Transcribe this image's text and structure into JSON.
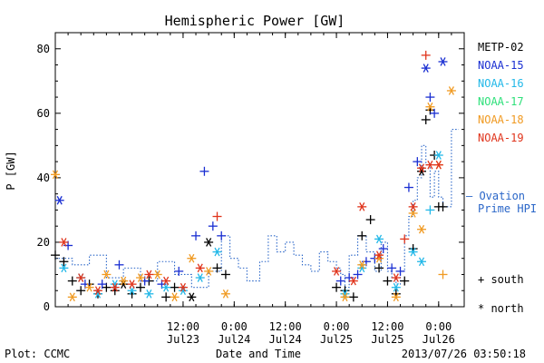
{
  "chart_data": {
    "type": "scatter",
    "title": "Hemispheric Power [GW]",
    "xlabel": "Date and Time",
    "ylabel": "P [GW]",
    "ylim": [
      0,
      85
    ],
    "xlim": [
      "2013-07-22 06:00",
      "2013-07-26 06:00"
    ],
    "yticks": [
      "0",
      "20",
      "40",
      "60",
      "80"
    ],
    "xticks": [
      {
        "time": "2013-07-23 12:00",
        "top": "12:00",
        "bottom": "Jul23"
      },
      {
        "time": "2013-07-24 00:00",
        "top": "0:00",
        "bottom": "Jul24"
      },
      {
        "time": "2013-07-24 12:00",
        "top": "12:00",
        "bottom": "Jul24"
      },
      {
        "time": "2013-07-25 00:00",
        "top": "0:00",
        "bottom": "Jul25"
      },
      {
        "time": "2013-07-25 12:00",
        "top": "12:00",
        "bottom": "Jul25"
      },
      {
        "time": "2013-07-26 00:00",
        "top": "0:00",
        "bottom": "Jul26"
      }
    ],
    "legend": {
      "placement": "right",
      "entries": [
        {
          "name": "METP-02",
          "color": "#000000"
        },
        {
          "name": "NOAA-15",
          "color": "#1a2fd2"
        },
        {
          "name": "NOAA-16",
          "color": "#22b8e8"
        },
        {
          "name": "NOAA-17",
          "color": "#2ee07a"
        },
        {
          "name": "NOAA-18",
          "color": "#f09a22"
        },
        {
          "name": "NOAA-19",
          "color": "#e0341c"
        }
      ],
      "ovation": "— Ovation Prime HPI",
      "ovation_color": "#2a66c8",
      "marker_south": "+ south",
      "marker_north": "* north"
    },
    "ovation_series": {
      "name": "Ovation Prime HPI",
      "style": "dotted-step",
      "color": "#2a66c8",
      "points": [
        [
          "2013-07-22 06:00",
          15
        ],
        [
          "2013-07-22 10:00",
          13
        ],
        [
          "2013-07-22 14:00",
          16
        ],
        [
          "2013-07-22 18:00",
          9
        ],
        [
          "2013-07-22 22:00",
          12
        ],
        [
          "2013-07-23 02:00",
          8
        ],
        [
          "2013-07-23 06:00",
          14
        ],
        [
          "2013-07-23 10:00",
          10
        ],
        [
          "2013-07-23 14:00",
          6
        ],
        [
          "2013-07-23 18:00",
          11
        ],
        [
          "2013-07-23 21:00",
          22
        ],
        [
          "2013-07-23 23:00",
          15
        ],
        [
          "2013-07-24 01:00",
          12
        ],
        [
          "2013-07-24 03:00",
          8
        ],
        [
          "2013-07-24 06:00",
          14
        ],
        [
          "2013-07-24 08:00",
          22
        ],
        [
          "2013-07-24 10:00",
          17
        ],
        [
          "2013-07-24 12:00",
          20
        ],
        [
          "2013-07-24 14:00",
          16
        ],
        [
          "2013-07-24 16:00",
          13
        ],
        [
          "2013-07-24 18:00",
          11
        ],
        [
          "2013-07-24 20:00",
          17
        ],
        [
          "2013-07-24 22:00",
          14
        ],
        [
          "2013-07-25 00:00",
          12
        ],
        [
          "2013-07-25 01:00",
          10
        ],
        [
          "2013-07-25 02:00",
          6
        ],
        [
          "2013-07-25 03:00",
          16
        ],
        [
          "2013-07-25 05:00",
          22
        ],
        [
          "2013-07-25 07:00",
          17
        ],
        [
          "2013-07-25 09:00",
          11
        ],
        [
          "2013-07-25 10:30",
          20
        ],
        [
          "2013-07-25 12:00",
          11
        ],
        [
          "2013-07-25 13:00",
          9
        ],
        [
          "2013-07-25 14:00",
          7
        ],
        [
          "2013-07-25 15:00",
          11
        ],
        [
          "2013-07-25 16:00",
          22
        ],
        [
          "2013-07-25 17:00",
          28
        ],
        [
          "2013-07-25 18:00",
          33
        ],
        [
          "2013-07-25 19:00",
          40
        ],
        [
          "2013-07-25 20:00",
          50
        ],
        [
          "2013-07-25 21:00",
          44
        ],
        [
          "2013-07-25 22:00",
          34
        ],
        [
          "2013-07-25 23:00",
          42
        ],
        [
          "2013-07-26 00:00",
          34
        ],
        [
          "2013-07-26 01:00",
          31
        ],
        [
          "2013-07-26 03:00",
          55
        ]
      ]
    },
    "series": [
      {
        "name": "METP-02",
        "color": "#000000",
        "points": [
          [
            "2013-07-22 06:00",
            16,
            "s"
          ],
          [
            "2013-07-22 08:00",
            14,
            "s"
          ],
          [
            "2013-07-22 10:00",
            8,
            "s"
          ],
          [
            "2013-07-22 12:00",
            5,
            "s"
          ],
          [
            "2013-07-22 14:00",
            7,
            "s"
          ],
          [
            "2013-07-22 16:00",
            4,
            "s"
          ],
          [
            "2013-07-22 18:00",
            6,
            "s"
          ],
          [
            "2013-07-22 20:00",
            5,
            "s"
          ],
          [
            "2013-07-22 22:00",
            7,
            "n"
          ],
          [
            "2013-07-23 00:00",
            4,
            "s"
          ],
          [
            "2013-07-23 02:00",
            6,
            "s"
          ],
          [
            "2013-07-23 04:00",
            8,
            "s"
          ],
          [
            "2013-07-23 08:00",
            3,
            "s"
          ],
          [
            "2013-07-23 10:00",
            6,
            "s"
          ],
          [
            "2013-07-23 14:00",
            3,
            "n"
          ],
          [
            "2013-07-23 18:00",
            20,
            "n"
          ],
          [
            "2013-07-23 20:00",
            12,
            "s"
          ],
          [
            "2013-07-23 22:00",
            10,
            "s"
          ],
          [
            "2013-07-25 00:00",
            6,
            "s"
          ],
          [
            "2013-07-25 02:00",
            5,
            "s"
          ],
          [
            "2013-07-25 04:00",
            3,
            "s"
          ],
          [
            "2013-07-25 06:00",
            22,
            "s"
          ],
          [
            "2013-07-25 08:00",
            27,
            "s"
          ],
          [
            "2013-07-25 10:00",
            12,
            "s"
          ],
          [
            "2013-07-25 12:00",
            8,
            "s"
          ],
          [
            "2013-07-25 14:00",
            4,
            "s"
          ],
          [
            "2013-07-25 16:00",
            8,
            "s"
          ],
          [
            "2013-07-25 18:00",
            18,
            "s"
          ],
          [
            "2013-07-25 20:00",
            42,
            "n"
          ],
          [
            "2013-07-25 21:00",
            58,
            "s"
          ],
          [
            "2013-07-25 22:00",
            61,
            "s"
          ],
          [
            "2013-07-25 23:00",
            47,
            "s"
          ],
          [
            "2013-07-26 00:00",
            31,
            "s"
          ],
          [
            "2013-07-26 01:00",
            31,
            "s"
          ]
        ]
      },
      {
        "name": "NOAA-15",
        "color": "#1a2fd2",
        "points": [
          [
            "2013-07-22 07:00",
            33,
            "n"
          ],
          [
            "2013-07-22 09:00",
            19,
            "s"
          ],
          [
            "2013-07-22 13:00",
            7,
            "s"
          ],
          [
            "2013-07-22 17:00",
            7,
            "s"
          ],
          [
            "2013-07-22 21:00",
            13,
            "s"
          ],
          [
            "2013-07-23 03:00",
            8,
            "s"
          ],
          [
            "2013-07-23 07:00",
            7,
            "s"
          ],
          [
            "2013-07-23 11:00",
            11,
            "s"
          ],
          [
            "2013-07-23 15:00",
            22,
            "s"
          ],
          [
            "2013-07-23 17:00",
            42,
            "s"
          ],
          [
            "2013-07-23 19:00",
            25,
            "s"
          ],
          [
            "2013-07-23 21:00",
            22,
            "s"
          ],
          [
            "2013-07-25 01:00",
            8,
            "s"
          ],
          [
            "2013-07-25 03:00",
            9,
            "s"
          ],
          [
            "2013-07-25 05:00",
            10,
            "s"
          ],
          [
            "2013-07-25 07:00",
            14,
            "s"
          ],
          [
            "2013-07-25 09:00",
            15,
            "s"
          ],
          [
            "2013-07-25 11:00",
            18,
            "s"
          ],
          [
            "2013-07-25 13:00",
            12,
            "s"
          ],
          [
            "2013-07-25 15:00",
            11,
            "s"
          ],
          [
            "2013-07-25 17:00",
            37,
            "s"
          ],
          [
            "2013-07-25 19:00",
            45,
            "s"
          ],
          [
            "2013-07-25 21:00",
            74,
            "n"
          ],
          [
            "2013-07-25 22:00",
            65,
            "s"
          ],
          [
            "2013-07-25 23:00",
            60,
            "s"
          ],
          [
            "2013-07-26 01:00",
            76,
            "n"
          ]
        ]
      },
      {
        "name": "NOAA-16",
        "color": "#22b8e8",
        "points": [
          [
            "2013-07-22 08:00",
            12,
            "n"
          ],
          [
            "2013-07-22 12:00",
            9,
            "n"
          ],
          [
            "2013-07-22 16:00",
            4,
            "n"
          ],
          [
            "2013-07-22 20:00",
            7,
            "n"
          ],
          [
            "2013-07-23 00:00",
            5,
            "n"
          ],
          [
            "2013-07-23 04:00",
            4,
            "n"
          ],
          [
            "2013-07-23 08:00",
            6,
            "n"
          ],
          [
            "2013-07-23 12:00",
            5,
            "n"
          ],
          [
            "2013-07-23 16:00",
            9,
            "n"
          ],
          [
            "2013-07-23 20:00",
            17,
            "n"
          ],
          [
            "2013-07-25 02:00",
            4,
            "n"
          ],
          [
            "2013-07-25 06:00",
            12,
            "n"
          ],
          [
            "2013-07-25 10:00",
            21,
            "n"
          ],
          [
            "2013-07-25 14:00",
            6,
            "n"
          ],
          [
            "2013-07-25 18:00",
            17,
            "n"
          ],
          [
            "2013-07-25 20:00",
            14,
            "n"
          ],
          [
            "2013-07-25 22:00",
            30,
            "s"
          ],
          [
            "2013-07-26 00:00",
            47,
            "n"
          ]
        ]
      },
      {
        "name": "NOAA-18",
        "color": "#f09a22",
        "points": [
          [
            "2013-07-22 06:00",
            41,
            "n"
          ],
          [
            "2013-07-22 10:00",
            3,
            "n"
          ],
          [
            "2013-07-22 14:00",
            6,
            "n"
          ],
          [
            "2013-07-22 18:00",
            10,
            "n"
          ],
          [
            "2013-07-22 22:00",
            8,
            "n"
          ],
          [
            "2013-07-23 02:00",
            9,
            "n"
          ],
          [
            "2013-07-23 06:00",
            10,
            "n"
          ],
          [
            "2013-07-23 10:00",
            3,
            "n"
          ],
          [
            "2013-07-23 14:00",
            15,
            "n"
          ],
          [
            "2013-07-23 18:00",
            11,
            "n"
          ],
          [
            "2013-07-23 22:00",
            4,
            "n"
          ],
          [
            "2013-07-25 02:00",
            3,
            "n"
          ],
          [
            "2013-07-25 06:00",
            13,
            "n"
          ],
          [
            "2013-07-25 10:00",
            15,
            "n"
          ],
          [
            "2013-07-25 14:00",
            3,
            "n"
          ],
          [
            "2013-07-25 18:00",
            29,
            "n"
          ],
          [
            "2013-07-25 20:00",
            24,
            "n"
          ],
          [
            "2013-07-25 22:00",
            62,
            "n"
          ],
          [
            "2013-07-26 00:00",
            44,
            "n"
          ],
          [
            "2013-07-26 01:00",
            10,
            "s"
          ],
          [
            "2013-07-26 03:00",
            67,
            "n"
          ]
        ]
      },
      {
        "name": "NOAA-19",
        "color": "#e0341c",
        "points": [
          [
            "2013-07-22 08:00",
            20,
            "n"
          ],
          [
            "2013-07-22 12:00",
            9,
            "n"
          ],
          [
            "2013-07-22 16:00",
            5,
            "n"
          ],
          [
            "2013-07-22 20:00",
            6,
            "n"
          ],
          [
            "2013-07-23 00:00",
            7,
            "n"
          ],
          [
            "2013-07-23 04:00",
            10,
            "n"
          ],
          [
            "2013-07-23 08:00",
            8,
            "n"
          ],
          [
            "2013-07-23 12:00",
            6,
            "n"
          ],
          [
            "2013-07-23 16:00",
            12,
            "n"
          ],
          [
            "2013-07-23 20:00",
            28,
            "s"
          ],
          [
            "2013-07-25 00:00",
            11,
            "n"
          ],
          [
            "2013-07-25 04:00",
            8,
            "n"
          ],
          [
            "2013-07-25 06:00",
            31,
            "n"
          ],
          [
            "2013-07-25 10:00",
            16,
            "n"
          ],
          [
            "2013-07-25 14:00",
            9,
            "n"
          ],
          [
            "2013-07-25 16:00",
            21,
            "s"
          ],
          [
            "2013-07-25 18:00",
            31,
            "n"
          ],
          [
            "2013-07-25 20:00",
            43,
            "n"
          ],
          [
            "2013-07-25 21:00",
            78,
            "s"
          ],
          [
            "2013-07-25 22:00",
            44,
            "n"
          ],
          [
            "2013-07-26 00:00",
            44,
            "n"
          ]
        ]
      }
    ]
  },
  "footer": {
    "left": "Plot: CCMC",
    "center": "Date and Time",
    "right": "2013/07/26 03:50:18"
  }
}
